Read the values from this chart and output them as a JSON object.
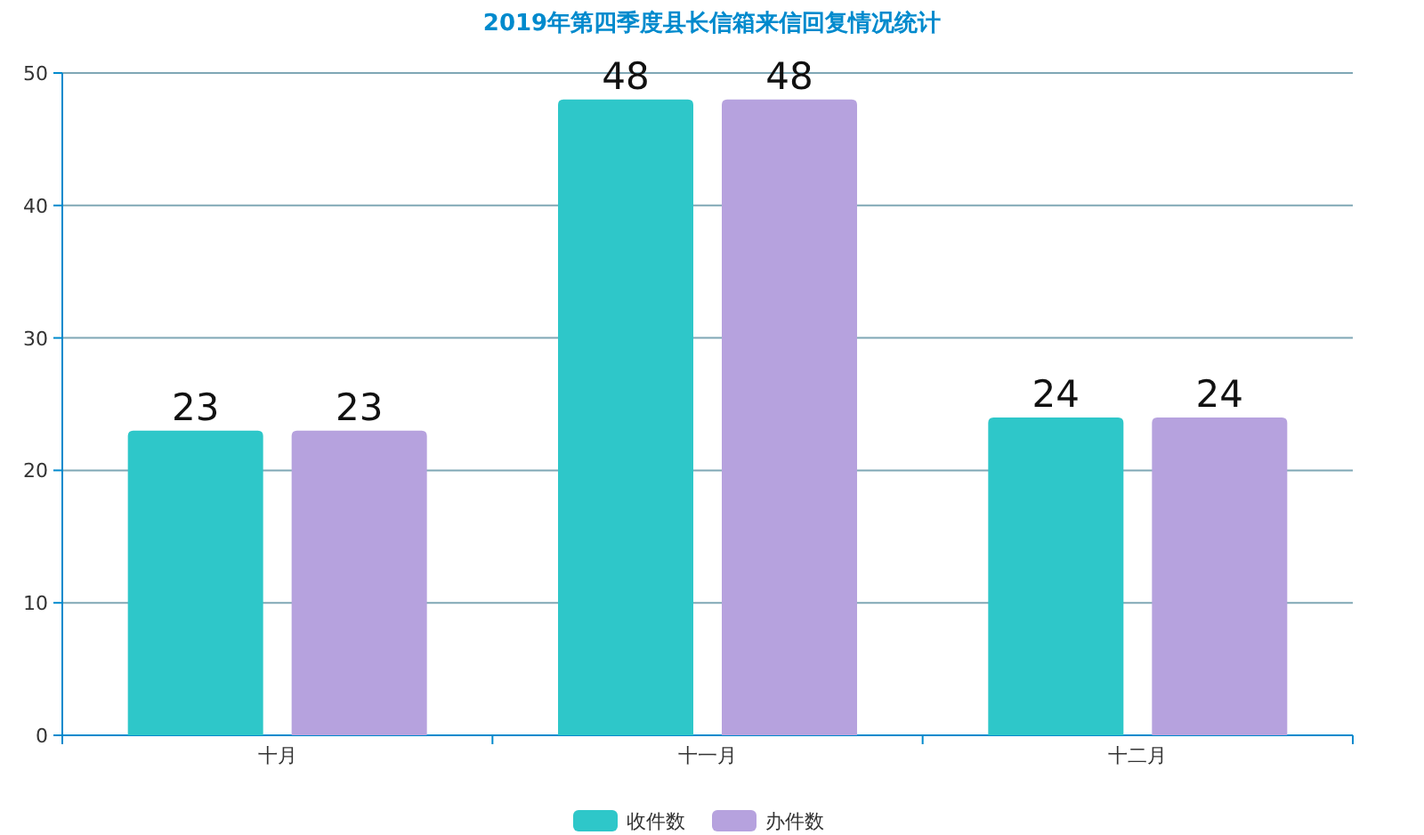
{
  "chart_data": {
    "type": "bar",
    "title": "2019年第四季度县长信箱来信回复情况统计",
    "categories": [
      "十月",
      "十一月",
      "十二月"
    ],
    "series": [
      {
        "name": "收件数",
        "color": "#2ec7c9",
        "values": [
          23,
          48,
          24
        ]
      },
      {
        "name": "办件数",
        "color": "#b6a2de",
        "values": [
          23,
          48,
          24
        ]
      }
    ],
    "ylim": [
      0,
      50
    ],
    "yticks": [
      0,
      10,
      20,
      30,
      40,
      50
    ],
    "grid": "y",
    "legend": "bottom",
    "data_labels": true
  }
}
